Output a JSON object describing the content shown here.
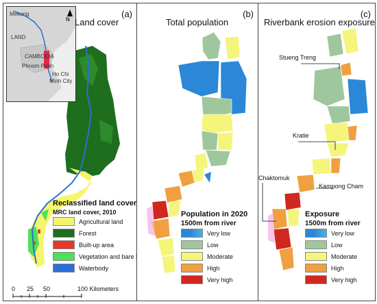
{
  "panel_a": {
    "title": "Land cover",
    "label": "(a)",
    "inset": {
      "labels": [
        "Mekong",
        "N",
        "LAND",
        "CAMBODIA",
        "Phnom Penh",
        "Ho Chi",
        "Minh City"
      ]
    },
    "legend": {
      "title": "Reclassified land cover",
      "subtitle": "MRC land cover, 2010",
      "items": [
        {
          "label": "Agricultural land",
          "color": "#f5f56b"
        },
        {
          "label": "Forest",
          "color": "#1e6e1e"
        },
        {
          "label": "Built-up area",
          "color": "#e23b2a"
        },
        {
          "label": "Vegetation and bare land",
          "color": "#4fe05a"
        },
        {
          "label": "Waterbody",
          "color": "#2a6fd6"
        }
      ]
    },
    "scale": {
      "ticks": [
        "0",
        "25",
        "50",
        "100 Kilometers"
      ]
    }
  },
  "panel_b": {
    "title": "Total population",
    "label": "(b)",
    "legend": {
      "title": "Population in 2020",
      "subtitle": "1500m from river",
      "items": [
        {
          "label": "Very low",
          "color": "#2b88d8"
        },
        {
          "label": "Low",
          "color": "#9ec79e"
        },
        {
          "label": "Moderate",
          "color": "#f4f57a"
        },
        {
          "label": "High",
          "color": "#f0a040"
        },
        {
          "label": "Very high",
          "color": "#d0281e"
        }
      ]
    }
  },
  "panel_c": {
    "title": "Riverbank erosion exposure",
    "label": "(c)",
    "places": [
      "Stueng Treng",
      "Kratie",
      "Chaktomuk",
      "Kampong Cham"
    ],
    "legend": {
      "title": "Exposure",
      "subtitle": "1500m from river",
      "items": [
        {
          "label": "Very low",
          "color": "#2b88d8"
        },
        {
          "label": "Low",
          "color": "#9ec79e"
        },
        {
          "label": "Moderate",
          "color": "#f4f57a"
        },
        {
          "label": "High",
          "color": "#f0a040"
        },
        {
          "label": "Very high",
          "color": "#d0281e"
        }
      ]
    }
  }
}
